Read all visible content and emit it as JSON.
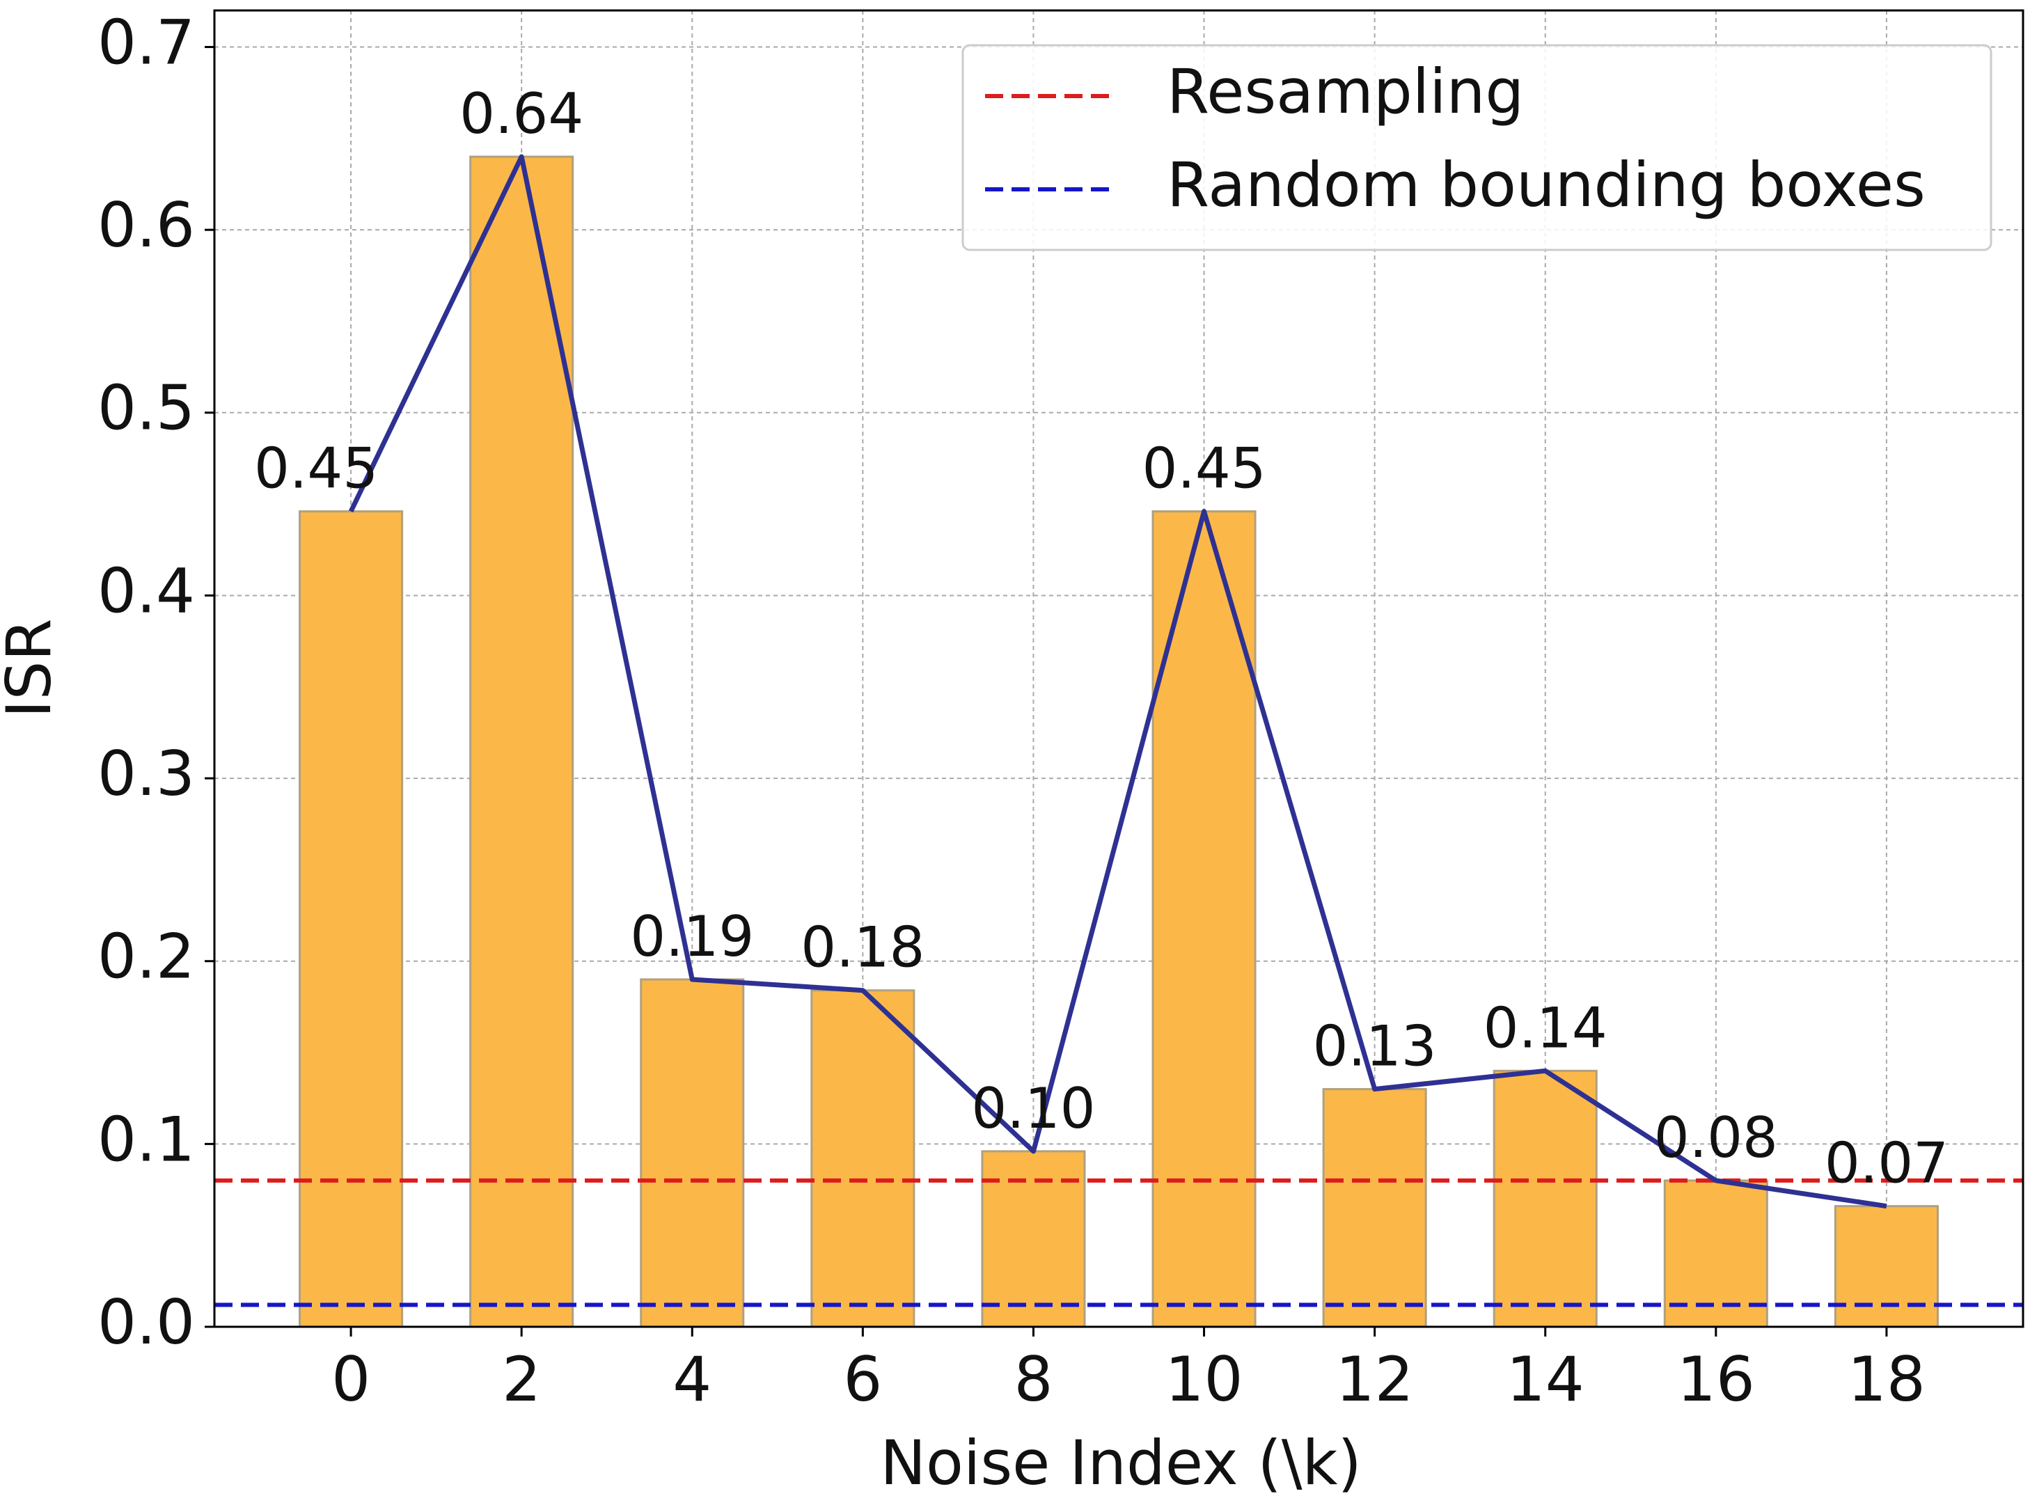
{
  "chart_data": {
    "type": "bar",
    "x_label": "Noise Index (\\k)",
    "y_label": "ISR",
    "x": [
      0,
      2,
      4,
      6,
      8,
      10,
      12,
      14,
      16,
      18
    ],
    "values": [
      0.446,
      0.64,
      0.19,
      0.184,
      0.096,
      0.446,
      0.13,
      0.14,
      0.08,
      0.066
    ],
    "value_labels": [
      "0.45",
      "0.64",
      "0.19",
      "0.18",
      "0.10",
      "0.45",
      "0.13",
      "0.14",
      "0.08",
      "0.07"
    ],
    "color": "#fbb848",
    "line_color": "#2e3192",
    "reference_lines": [
      {
        "name": "Resampling",
        "color": "#dd1c1c",
        "value": 0.08
      },
      {
        "name": "Random bounding boxes",
        "color": "#1616c8",
        "value": 0.012
      }
    ],
    "xlim": [
      -1.6,
      19.6
    ],
    "ylim": [
      0,
      0.72
    ],
    "xticks": [
      0,
      2,
      4,
      6,
      8,
      10,
      12,
      14,
      16,
      18
    ],
    "yticks": [
      {
        "value": 0,
        "label": "0.0"
      },
      0.1,
      0.2,
      0.3,
      0.4,
      0.5,
      0.6,
      0.7
    ],
    "grid": true,
    "legend": "upper right"
  }
}
